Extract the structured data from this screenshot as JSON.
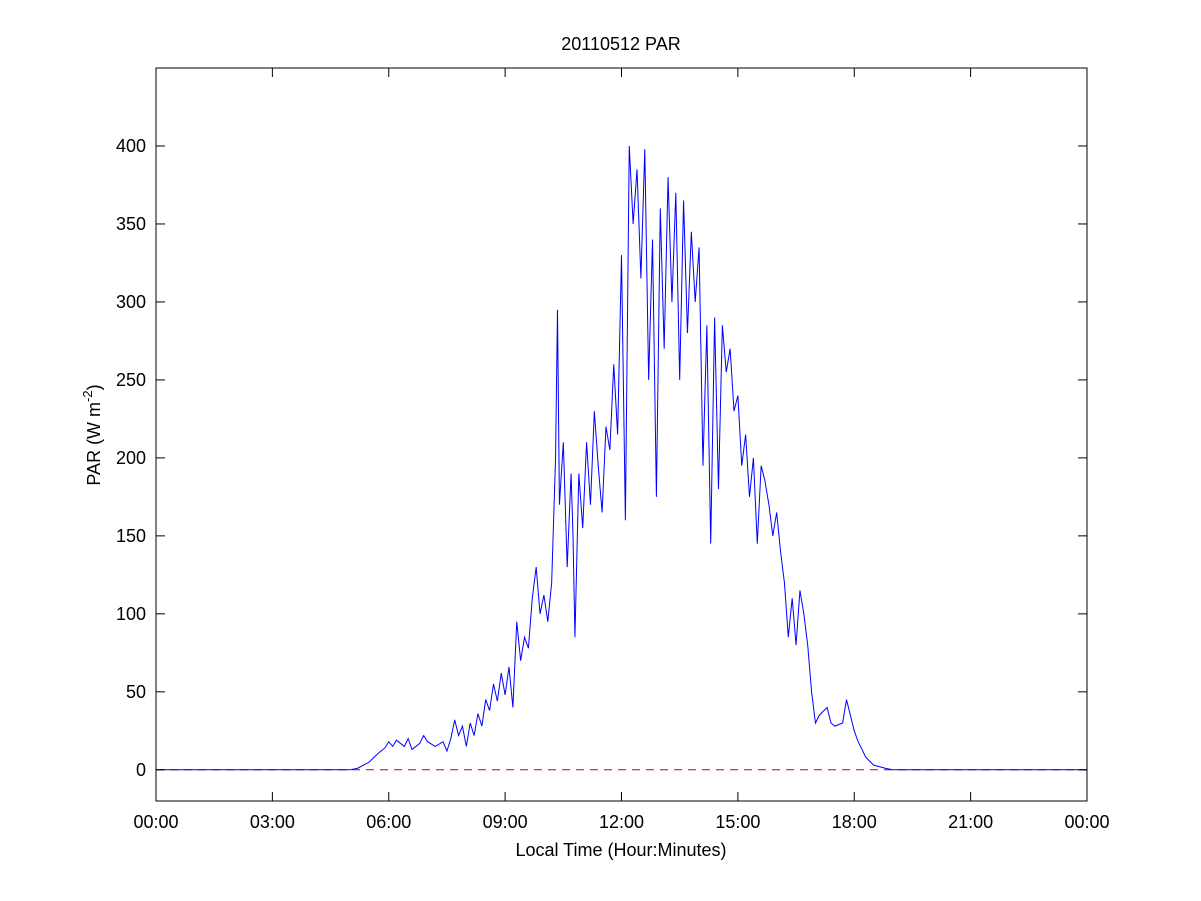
{
  "chart_data": {
    "type": "line",
    "title": "20110512 PAR",
    "xlabel": "Local Time (Hour:Minutes)",
    "ylabel": [
      "PAR (W m",
      "-2",
      ")"
    ],
    "x": [
      0,
      5,
      5.2,
      5.5,
      5.7,
      5.9,
      6.0,
      6.1,
      6.2,
      6.4,
      6.5,
      6.6,
      6.8,
      6.9,
      7.0,
      7.2,
      7.4,
      7.5,
      7.6,
      7.7,
      7.8,
      7.9,
      8.0,
      8.1,
      8.2,
      8.3,
      8.4,
      8.5,
      8.6,
      8.7,
      8.8,
      8.9,
      9.0,
      9.1,
      9.2,
      9.3,
      9.4,
      9.5,
      9.6,
      9.7,
      9.8,
      9.9,
      10.0,
      10.1,
      10.2,
      10.3,
      10.35,
      10.4,
      10.5,
      10.6,
      10.7,
      10.75,
      10.8,
      10.9,
      11.0,
      11.1,
      11.2,
      11.3,
      11.4,
      11.5,
      11.6,
      11.7,
      11.8,
      11.9,
      12.0,
      12.1,
      12.2,
      12.3,
      12.4,
      12.5,
      12.6,
      12.7,
      12.8,
      12.9,
      13.0,
      13.1,
      13.2,
      13.3,
      13.4,
      13.5,
      13.6,
      13.7,
      13.8,
      13.9,
      14.0,
      14.1,
      14.2,
      14.3,
      14.4,
      14.5,
      14.6,
      14.7,
      14.8,
      14.9,
      15.0,
      15.1,
      15.2,
      15.3,
      15.4,
      15.5,
      15.6,
      15.7,
      15.8,
      15.9,
      16.0,
      16.1,
      16.2,
      16.3,
      16.4,
      16.5,
      16.6,
      16.7,
      16.8,
      16.9,
      17.0,
      17.1,
      17.3,
      17.4,
      17.5,
      17.7,
      17.8,
      17.9,
      18.0,
      18.1,
      18.3,
      18.5,
      18.8,
      19.0,
      24
    ],
    "values": [
      0,
      0,
      1,
      5,
      10,
      14,
      18,
      15,
      19,
      15,
      20,
      13,
      17,
      22,
      18,
      15,
      18,
      12,
      20,
      32,
      22,
      28,
      15,
      30,
      22,
      36,
      28,
      45,
      38,
      55,
      44,
      62,
      48,
      66,
      40,
      95,
      70,
      85,
      78,
      110,
      130,
      100,
      112,
      95,
      120,
      200,
      295,
      170,
      210,
      130,
      190,
      150,
      85,
      190,
      155,
      210,
      170,
      230,
      195,
      165,
      220,
      205,
      260,
      215,
      330,
      160,
      400,
      350,
      385,
      315,
      398,
      250,
      340,
      175,
      360,
      270,
      380,
      300,
      370,
      250,
      365,
      280,
      345,
      300,
      335,
      195,
      285,
      145,
      290,
      180,
      285,
      255,
      270,
      230,
      240,
      195,
      215,
      175,
      200,
      145,
      195,
      185,
      170,
      150,
      165,
      140,
      120,
      85,
      110,
      80,
      115,
      100,
      80,
      50,
      30,
      35,
      40,
      30,
      28,
      30,
      45,
      35,
      25,
      18,
      8,
      3,
      1,
      0,
      0
    ],
    "color": "#0000ff",
    "hline": {
      "value": 0,
      "color": "#c00000",
      "dash": "dashed"
    },
    "xlim": [
      0,
      24
    ],
    "xticks": [
      {
        "value": 0,
        "label": "00:00"
      },
      {
        "value": 3,
        "label": "03:00"
      },
      {
        "value": 6,
        "label": "06:00"
      },
      {
        "value": 9,
        "label": "09:00"
      },
      {
        "value": 12,
        "label": "12:00"
      },
      {
        "value": 15,
        "label": "15:00"
      },
      {
        "value": 18,
        "label": "18:00"
      },
      {
        "value": 21,
        "label": "21:00"
      },
      {
        "value": 24,
        "label": "00:00"
      }
    ],
    "ylim": [
      -20,
      450
    ],
    "yticks": [
      0,
      50,
      100,
      150,
      200,
      250,
      300,
      350,
      400
    ],
    "grid": false
  }
}
